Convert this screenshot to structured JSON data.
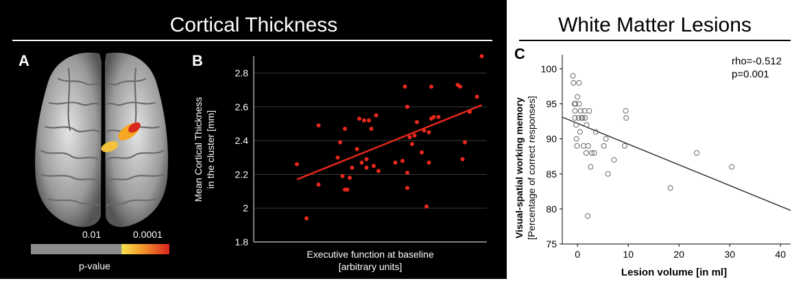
{
  "sections": {
    "cortical_title": "Cortical Thickness",
    "wm_title": "White Matter Lesions"
  },
  "panels": {
    "a_letter": "A",
    "b_letter": "B",
    "c_letter": "C"
  },
  "colorbar": {
    "tick_low": "0.01",
    "tick_high": "0.0001",
    "label": "p-value"
  },
  "stats": {
    "rho": "rho=-0.512",
    "p": "p=0.001"
  },
  "colors": {
    "series_b": "#e8281c",
    "fit_b": "#e8281c",
    "series_c": "#666666",
    "fit_c": "#333333"
  },
  "chart_data": [
    {
      "type": "scatter",
      "panel": "B",
      "xlabel_line1": "Executive function at baseline",
      "xlabel_line2": "[arbitrary units]",
      "ylabel_line1": "Mean Cortical Thickness",
      "ylabel_line2": "in the cluster [mm]",
      "x_range": [
        0,
        100
      ],
      "ylim": [
        1.8,
        2.9
      ],
      "yticks": [
        "1.8",
        "2",
        "2.2",
        "2.4",
        "2.6",
        "2.8"
      ],
      "grid": true,
      "points": [
        [
          18,
          2.26
        ],
        [
          22,
          1.94
        ],
        [
          27,
          2.49
        ],
        [
          27,
          2.14
        ],
        [
          35,
          2.3
        ],
        [
          36,
          2.39
        ],
        [
          37,
          2.19
        ],
        [
          38,
          2.11
        ],
        [
          38,
          2.47
        ],
        [
          39,
          2.11
        ],
        [
          40,
          2.18
        ],
        [
          41,
          2.24
        ],
        [
          43,
          2.35
        ],
        [
          44,
          2.53
        ],
        [
          45,
          2.27
        ],
        [
          46,
          2.52
        ],
        [
          47,
          2.29
        ],
        [
          47,
          2.24
        ],
        [
          48,
          2.52
        ],
        [
          49,
          2.47
        ],
        [
          50,
          2.25
        ],
        [
          51,
          2.55
        ],
        [
          52,
          2.22
        ],
        [
          59,
          2.27
        ],
        [
          62,
          2.28
        ],
        [
          63,
          2.72
        ],
        [
          64,
          2.6
        ],
        [
          64,
          2.6
        ],
        [
          64,
          2.21
        ],
        [
          64,
          2.12
        ],
        [
          65,
          2.42
        ],
        [
          66,
          2.38
        ],
        [
          67,
          2.43
        ],
        [
          68,
          2.51
        ],
        [
          70,
          2.33
        ],
        [
          71,
          2.46
        ],
        [
          72,
          2.01
        ],
        [
          73,
          2.45
        ],
        [
          73,
          2.27
        ],
        [
          74,
          2.72
        ],
        [
          74,
          2.53
        ],
        [
          75,
          2.54
        ],
        [
          77,
          2.54
        ],
        [
          85,
          2.73
        ],
        [
          86,
          2.72
        ],
        [
          87,
          2.29
        ],
        [
          88,
          2.39
        ],
        [
          90,
          2.57
        ],
        [
          93,
          2.66
        ],
        [
          95,
          2.9
        ]
      ],
      "fit": [
        [
          18,
          2.17
        ],
        [
          95,
          2.61
        ]
      ]
    },
    {
      "type": "scatter",
      "panel": "C",
      "xlabel": "Lesion volume [in ml]",
      "ylabel_line1": "Visual-spatial working memory",
      "ylabel_line2": "[Percentage of correct responses]",
      "xlim": [
        -3,
        42
      ],
      "ylim": [
        75,
        102
      ],
      "xticks": [
        0,
        10,
        20,
        30,
        40
      ],
      "yticks": [
        75,
        80,
        85,
        90,
        95,
        100
      ],
      "grid": false,
      "points": [
        [
          -0.9,
          99
        ],
        [
          -0.8,
          98
        ],
        [
          -0.6,
          95
        ],
        [
          -0.5,
          94
        ],
        [
          -0.5,
          93
        ],
        [
          -0.4,
          95
        ],
        [
          -0.3,
          92
        ],
        [
          -0.2,
          90
        ],
        [
          -0.1,
          89
        ],
        [
          0,
          96
        ],
        [
          0.2,
          93
        ],
        [
          0.3,
          95
        ],
        [
          0.3,
          98
        ],
        [
          0.5,
          91
        ],
        [
          0.6,
          94
        ],
        [
          0.8,
          93
        ],
        [
          1.0,
          93
        ],
        [
          1.2,
          89
        ],
        [
          1.4,
          94
        ],
        [
          1.5,
          93
        ],
        [
          1.7,
          88
        ],
        [
          1.8,
          92
        ],
        [
          2.0,
          79
        ],
        [
          2.1,
          89
        ],
        [
          2.3,
          94
        ],
        [
          2.6,
          86
        ],
        [
          2.8,
          88
        ],
        [
          3.3,
          88
        ],
        [
          3.6,
          91
        ],
        [
          5.2,
          89
        ],
        [
          5.6,
          90
        ],
        [
          6.0,
          85
        ],
        [
          7.2,
          87
        ],
        [
          9.3,
          89
        ],
        [
          9.5,
          94
        ],
        [
          9.6,
          93
        ],
        [
          18.3,
          83
        ],
        [
          23.5,
          88
        ],
        [
          30.4,
          86
        ]
      ],
      "fit": [
        [
          -3,
          93.1
        ],
        [
          42,
          79.8
        ]
      ]
    }
  ]
}
